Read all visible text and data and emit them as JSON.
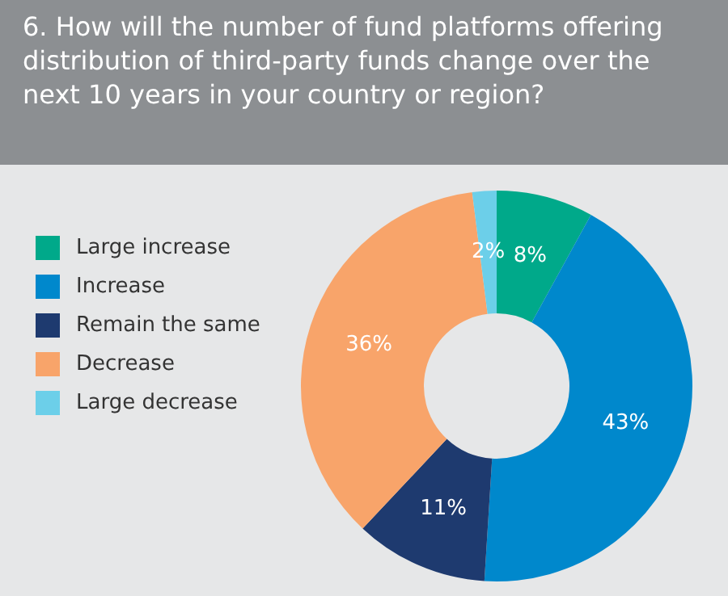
{
  "chart_data": {
    "type": "donut",
    "title": "6. How will the number of fund platforms offering distribution of third-party funds change over the next 10 years in your country or region?",
    "categories": [
      "Large increase",
      "Increase",
      "Remain the same",
      "Decrease",
      "Large decrease"
    ],
    "values": [
      8,
      43,
      11,
      36,
      2
    ],
    "colors": [
      "#00a98a",
      "#0088cc",
      "#1e3a6f",
      "#f8a46a",
      "#6ccfe9"
    ],
    "value_labels": [
      "8%",
      "43%",
      "11%",
      "36%",
      "2%"
    ],
    "legend": "left"
  }
}
